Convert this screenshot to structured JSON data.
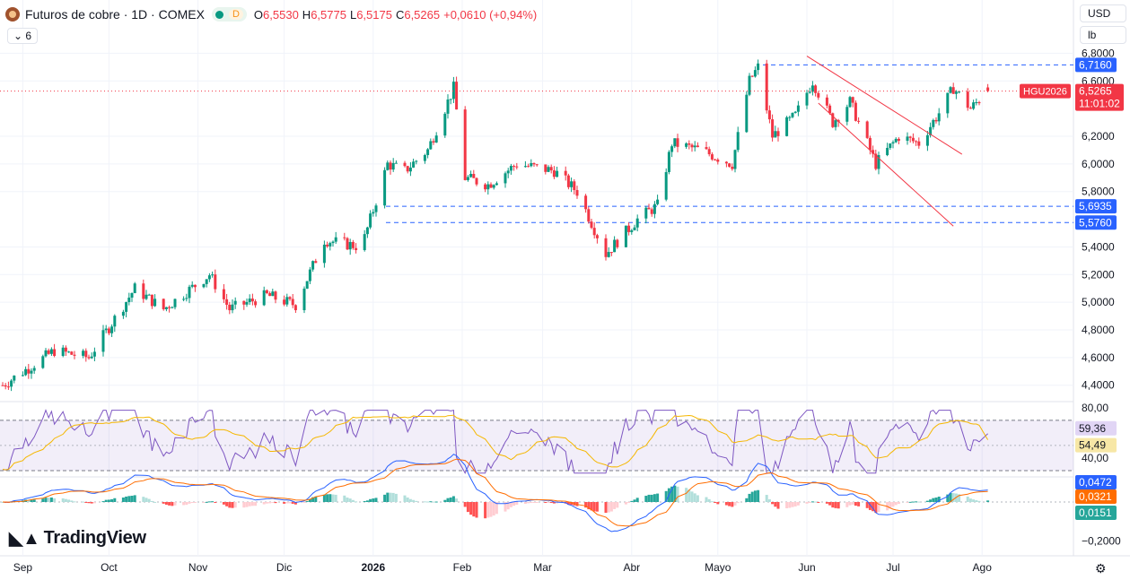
{
  "header": {
    "title": "Futuros de cobre · 1D · COMEX",
    "dlabel": "D",
    "o_label": "O",
    "o_value": "6,5530",
    "h_label": "H",
    "h_value": "6,5775",
    "l_label": "L",
    "l_value": "6,5175",
    "c_label": "C",
    "c_value": "6,5265",
    "change": "+0,0610 (+0,94%)",
    "indicators_count": "6"
  },
  "units": {
    "currency": "USD",
    "measure": "lb"
  },
  "brand": {
    "logo_text": "TradingView"
  },
  "colors": {
    "up": "#089981",
    "down": "#f23645",
    "level": "#2962ff",
    "rsi": "#7e57c2",
    "rsi_ma": "#f5b700",
    "macd": "#2962ff",
    "signal": "#ff6d00"
  },
  "chart_data": [
    {
      "type": "candlestick",
      "symbol": "HGU2026",
      "x_tick_labels": [
        "Sep",
        "Oct",
        "Nov",
        "Dic",
        "2026",
        "Feb",
        "Mar",
        "Abr",
        "Mayo",
        "Jun",
        "Jul",
        "Ago"
      ],
      "y_tick_labels": [
        "6,8000",
        "6,6000",
        "6,2000",
        "6,0000",
        "5,8000",
        "5,4000",
        "5,2000",
        "5,0000",
        "4,8000",
        "4,6000",
        "4,4000"
      ],
      "ylim": [
        4.34,
        6.9
      ],
      "last_price": 6.5265,
      "last_price_label": "6,5265",
      "countdown": "11:01:02",
      "horizontal_levels": [
        {
          "value": 6.716,
          "label": "6,7160"
        },
        {
          "value": 5.6935,
          "label": "5,6935"
        },
        {
          "value": 5.576,
          "label": "5,5760"
        }
      ],
      "trend_lines": [
        {
          "from": [
            "2026-06-01",
            6.78
          ],
          "to": [
            "2026-07-25",
            6.07
          ]
        },
        {
          "from": [
            "2026-06-05",
            6.44
          ],
          "to": [
            "2026-07-22",
            5.55
          ]
        }
      ],
      "key_points": [
        {
          "x": "2025-08-25",
          "close": 4.4
        },
        {
          "x": "2025-09-12",
          "close": 4.65
        },
        {
          "x": "2025-09-24",
          "close": 4.6
        },
        {
          "x": "2025-10-10",
          "close": 5.1
        },
        {
          "x": "2025-10-20",
          "close": 4.95
        },
        {
          "x": "2025-11-05",
          "close": 5.2
        },
        {
          "x": "2025-11-12",
          "close": 4.95
        },
        {
          "x": "2025-11-25",
          "close": 5.05
        },
        {
          "x": "2025-12-05",
          "close": 4.98
        },
        {
          "x": "2025-12-15",
          "close": 5.45
        },
        {
          "x": "2025-12-28",
          "close": 5.4
        },
        {
          "x": "2026-01-06",
          "close": 6.0
        },
        {
          "x": "2026-01-12",
          "close": 5.95
        },
        {
          "x": "2026-01-20",
          "close": 6.1
        },
        {
          "x": "2026-01-29",
          "close": 6.55
        },
        {
          "x": "2026-02-02",
          "close": 5.9
        },
        {
          "x": "2026-02-10",
          "close": 5.85
        },
        {
          "x": "2026-02-20",
          "close": 6.0
        },
        {
          "x": "2026-03-05",
          "close": 5.95
        },
        {
          "x": "2026-03-13",
          "close": 5.8
        },
        {
          "x": "2026-03-23",
          "close": 5.35
        },
        {
          "x": "2026-04-03",
          "close": 5.6
        },
        {
          "x": "2026-04-10",
          "close": 5.7
        },
        {
          "x": "2026-04-15",
          "close": 6.15
        },
        {
          "x": "2026-04-25",
          "close": 6.1
        },
        {
          "x": "2026-05-06",
          "close": 6.0
        },
        {
          "x": "2026-05-12",
          "close": 6.6
        },
        {
          "x": "2026-05-15",
          "close": 6.7
        },
        {
          "x": "2026-05-20",
          "close": 6.2
        },
        {
          "x": "2026-05-28",
          "close": 6.35
        },
        {
          "x": "2026-06-03",
          "close": 6.6
        },
        {
          "x": "2026-06-10",
          "close": 6.3
        },
        {
          "x": "2026-06-16",
          "close": 6.45
        },
        {
          "x": "2026-06-25",
          "close": 6.0
        },
        {
          "x": "2026-07-03",
          "close": 6.2
        },
        {
          "x": "2026-07-10",
          "close": 6.15
        },
        {
          "x": "2026-07-18",
          "close": 6.4
        },
        {
          "x": "2026-07-22",
          "close": 6.55
        },
        {
          "x": "2026-07-28",
          "close": 6.4
        },
        {
          "x": "2026-08-03",
          "close": 6.5265
        }
      ]
    },
    {
      "type": "line",
      "name": "RSI",
      "y_tick_labels": [
        "80,00",
        "40,00"
      ],
      "ylim": [
        25,
        82
      ],
      "bands": [
        70,
        30
      ],
      "midline": 50,
      "last_values": [
        {
          "value": 59.36,
          "label": "59,36"
        },
        {
          "value": 54.49,
          "label": "54,49"
        }
      ]
    },
    {
      "type": "line",
      "name": "MACD",
      "y_tick_labels": [
        "−0,2000"
      ],
      "ylim": [
        -0.24,
        0.12
      ],
      "last_values": [
        {
          "value": 0.0472,
          "label": "0,0472"
        },
        {
          "value": 0.0321,
          "label": "0,0321"
        },
        {
          "value": 0.0151,
          "label": "0,0151"
        }
      ]
    }
  ]
}
